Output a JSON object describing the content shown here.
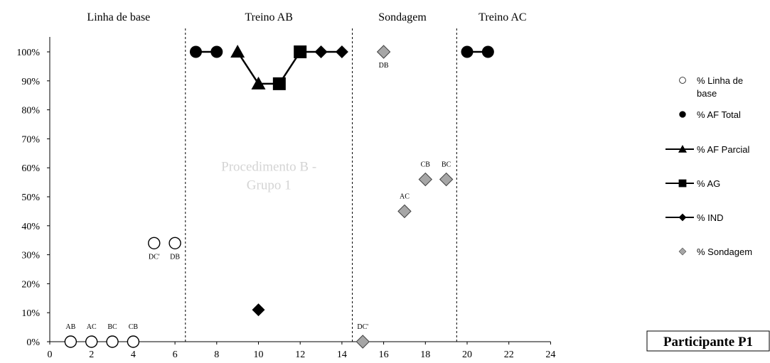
{
  "chart_data": {
    "type": "scatter",
    "xlim": [
      0,
      24
    ],
    "ylim": [
      0,
      100
    ],
    "x_ticks": [
      "0",
      "2",
      "4",
      "6",
      "8",
      "10",
      "12",
      "14",
      "16",
      "18",
      "20",
      "22",
      "24"
    ],
    "y_ticks": [
      "0%",
      "10%",
      "20%",
      "30%",
      "40%",
      "50%",
      "60%",
      "70%",
      "80%",
      "90%",
      "100%"
    ],
    "phase_lines": [
      6.5,
      14.5,
      19.5
    ],
    "phases": [
      {
        "label": "Linha de base",
        "center": 3.3
      },
      {
        "label": "Treino AB",
        "center": 10.5
      },
      {
        "label": "Sondagem",
        "center": 16.9
      },
      {
        "label": "Treino AC",
        "center": 21.7
      }
    ],
    "annotation": {
      "line1": "Procedimento B -",
      "line2": "Grupo 1",
      "x": 10.5,
      "y": 58
    },
    "participant_label": "Participante P1",
    "series": [
      {
        "name": "% Linha de base",
        "marker": "circle-open",
        "line": false,
        "points": [
          {
            "x": 1,
            "y": 0,
            "label": "AB"
          },
          {
            "x": 2,
            "y": 0,
            "label": "AC"
          },
          {
            "x": 3,
            "y": 0,
            "label": "BC"
          },
          {
            "x": 4,
            "y": 0,
            "label": "CB"
          },
          {
            "x": 5,
            "y": 34,
            "label": "DC'"
          },
          {
            "x": 6,
            "y": 34,
            "label": "DB"
          }
        ]
      },
      {
        "name": "% AF Total",
        "marker": "circle",
        "line": true,
        "segments": [
          [
            {
              "x": 7,
              "y": 100
            },
            {
              "x": 8,
              "y": 100
            }
          ],
          [
            {
              "x": 20,
              "y": 100
            },
            {
              "x": 21,
              "y": 100
            }
          ]
        ]
      },
      {
        "name": "% AF Parcial",
        "marker": "triangle",
        "line": true,
        "segments": [
          [
            {
              "x": 9,
              "y": 100
            },
            {
              "x": 10,
              "y": 89
            }
          ]
        ]
      },
      {
        "name": "% AG",
        "marker": "square",
        "line": true,
        "segments": [
          [
            {
              "x": 11,
              "y": 89
            },
            {
              "x": 12,
              "y": 100
            }
          ]
        ]
      },
      {
        "name": "% IND",
        "marker": "diamond",
        "line": true,
        "segments": [
          [
            {
              "x": 13,
              "y": 100
            },
            {
              "x": 14,
              "y": 100
            }
          ]
        ],
        "extra_points": [
          {
            "x": 10,
            "y": 11
          }
        ]
      },
      {
        "name": "% Sondagem",
        "marker": "diamond-gray",
        "line": false,
        "points": [
          {
            "x": 15,
            "y": 0,
            "label": "DC'"
          },
          {
            "x": 16,
            "y": 100,
            "label": "DB"
          },
          {
            "x": 17,
            "y": 45,
            "label": "AC"
          },
          {
            "x": 18,
            "y": 56,
            "label": "CB"
          },
          {
            "x": 19,
            "y": 56,
            "label": "BC"
          }
        ]
      }
    ],
    "connectors": [
      [
        {
          "x": 10,
          "y": 89
        },
        {
          "x": 11,
          "y": 89
        }
      ],
      [
        {
          "x": 12,
          "y": 100
        },
        {
          "x": 13,
          "y": 100
        }
      ]
    ]
  },
  "legend": {
    "items": [
      {
        "label_lines": [
          "% Linha de",
          "base"
        ],
        "marker": "circle-open",
        "line": false
      },
      {
        "label_lines": [
          "% AF Total"
        ],
        "marker": "circle",
        "line": false
      },
      {
        "label_lines": [
          "% AF Parcial"
        ],
        "marker": "triangle",
        "line": true
      },
      {
        "label_lines": [
          "% AG"
        ],
        "marker": "square",
        "line": true
      },
      {
        "label_lines": [
          "% IND"
        ],
        "marker": "diamond",
        "line": true
      },
      {
        "label_lines": [
          "% Sondagem"
        ],
        "marker": "diamond-gray",
        "line": false
      }
    ]
  }
}
